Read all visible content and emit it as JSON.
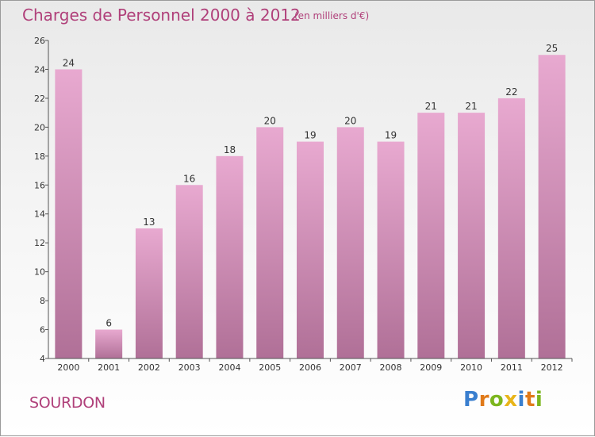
{
  "header": {
    "title": "Charges de Personnel 2000 à 2012",
    "subtitle": "(en milliers d'€)"
  },
  "footer": {
    "place": "SOURDON",
    "brand": "Proxiti",
    "brand_letters": [
      {
        "ch": "P",
        "color": "#3a7fcf"
      },
      {
        "ch": "r",
        "color": "#e07a1a"
      },
      {
        "ch": "o",
        "color": "#7cb61e"
      },
      {
        "ch": "x",
        "color": "#e8b51a"
      },
      {
        "ch": "i",
        "color": "#3a7fcf"
      },
      {
        "ch": "t",
        "color": "#e07a1a"
      },
      {
        "ch": "i",
        "color": "#7cb61e"
      }
    ]
  },
  "chart_data": {
    "type": "bar",
    "title": "Charges de Personnel 2000 à 2012",
    "subtitle": "(en milliers d'€)",
    "categories": [
      "2000",
      "2001",
      "2002",
      "2003",
      "2004",
      "2005",
      "2006",
      "2007",
      "2008",
      "2009",
      "2010",
      "2011",
      "2012"
    ],
    "values": [
      24,
      6,
      13,
      16,
      18,
      20,
      19,
      20,
      19,
      21,
      21,
      22,
      25
    ],
    "ylim": [
      4,
      26
    ],
    "yticks": [
      4,
      6,
      8,
      10,
      12,
      14,
      16,
      18,
      20,
      22,
      24,
      26
    ],
    "grid": false,
    "bar_color_top": "#e8a9d0",
    "bar_color_bottom": "#b07097"
  }
}
